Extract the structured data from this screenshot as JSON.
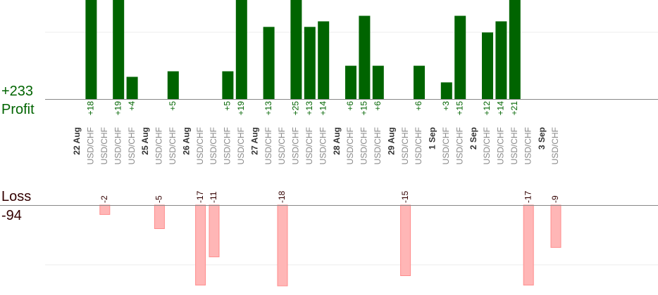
{
  "summary": {
    "profit_value": "+233",
    "profit_label": "Profit",
    "loss_label": "Loss",
    "loss_value": "-94"
  },
  "colors": {
    "profit_bar": "#006400",
    "profit_text": "#006400",
    "loss_bar": "#ffb6b6",
    "loss_text": "#330000",
    "axis": "#888888",
    "grid": "#eeeeee",
    "date_text": "#333333",
    "symbol_text": "#888888"
  },
  "chart_data": {
    "type": "bar",
    "columns": [
      {
        "label": "22 Aug",
        "kind": "date"
      },
      {
        "label": "USD/CHF",
        "kind": "trade",
        "value": 18
      },
      {
        "label": "USD/CHF",
        "kind": "trade",
        "value": -2
      },
      {
        "label": "USD/CHF",
        "kind": "trade",
        "value": 19
      },
      {
        "label": "USD/CHF",
        "kind": "trade",
        "value": 4
      },
      {
        "label": "25 Aug",
        "kind": "date"
      },
      {
        "label": "USD/CHF",
        "kind": "trade",
        "value": -5
      },
      {
        "label": "USD/CHF",
        "kind": "trade",
        "value": 5
      },
      {
        "label": "26 Aug",
        "kind": "date"
      },
      {
        "label": "USD/CHF",
        "kind": "trade",
        "value": -17
      },
      {
        "label": "USD/CHF",
        "kind": "trade",
        "value": -11
      },
      {
        "label": "USD/CHF",
        "kind": "trade",
        "value": 5
      },
      {
        "label": "USD/CHF",
        "kind": "trade",
        "value": 19
      },
      {
        "label": "27 Aug",
        "kind": "date"
      },
      {
        "label": "USD/CHF",
        "kind": "trade",
        "value": 13
      },
      {
        "label": "USD/CHF",
        "kind": "trade",
        "value": -18
      },
      {
        "label": "USD/CHF",
        "kind": "trade",
        "value": 25
      },
      {
        "label": "USD/CHF",
        "kind": "trade",
        "value": 13
      },
      {
        "label": "USD/CHF",
        "kind": "trade",
        "value": 14
      },
      {
        "label": "28 Aug",
        "kind": "date"
      },
      {
        "label": "USD/CHF",
        "kind": "trade",
        "value": 6
      },
      {
        "label": "USD/CHF",
        "kind": "trade",
        "value": 15
      },
      {
        "label": "USD/CHF",
        "kind": "trade",
        "value": 6
      },
      {
        "label": "29 Aug",
        "kind": "date"
      },
      {
        "label": "USD/CHF",
        "kind": "trade",
        "value": -15
      },
      {
        "label": "USD/CHF",
        "kind": "trade",
        "value": 6
      },
      {
        "label": "1 Sep",
        "kind": "date"
      },
      {
        "label": "USD/CHF",
        "kind": "trade",
        "value": 3
      },
      {
        "label": "USD/CHF",
        "kind": "trade",
        "value": 15
      },
      {
        "label": "2 Sep",
        "kind": "date"
      },
      {
        "label": "USD/CHF",
        "kind": "trade",
        "value": 12
      },
      {
        "label": "USD/CHF",
        "kind": "trade",
        "value": 14
      },
      {
        "label": "USD/CHF",
        "kind": "trade",
        "value": 21
      },
      {
        "label": "USD/CHF",
        "kind": "trade",
        "value": -17
      },
      {
        "label": "3 Sep",
        "kind": "date"
      },
      {
        "label": "USD/CHF",
        "kind": "trade",
        "value": -9
      }
    ],
    "profit_axis_visible_max": 15,
    "loss_axis_visible_min": -12,
    "grid": true
  }
}
